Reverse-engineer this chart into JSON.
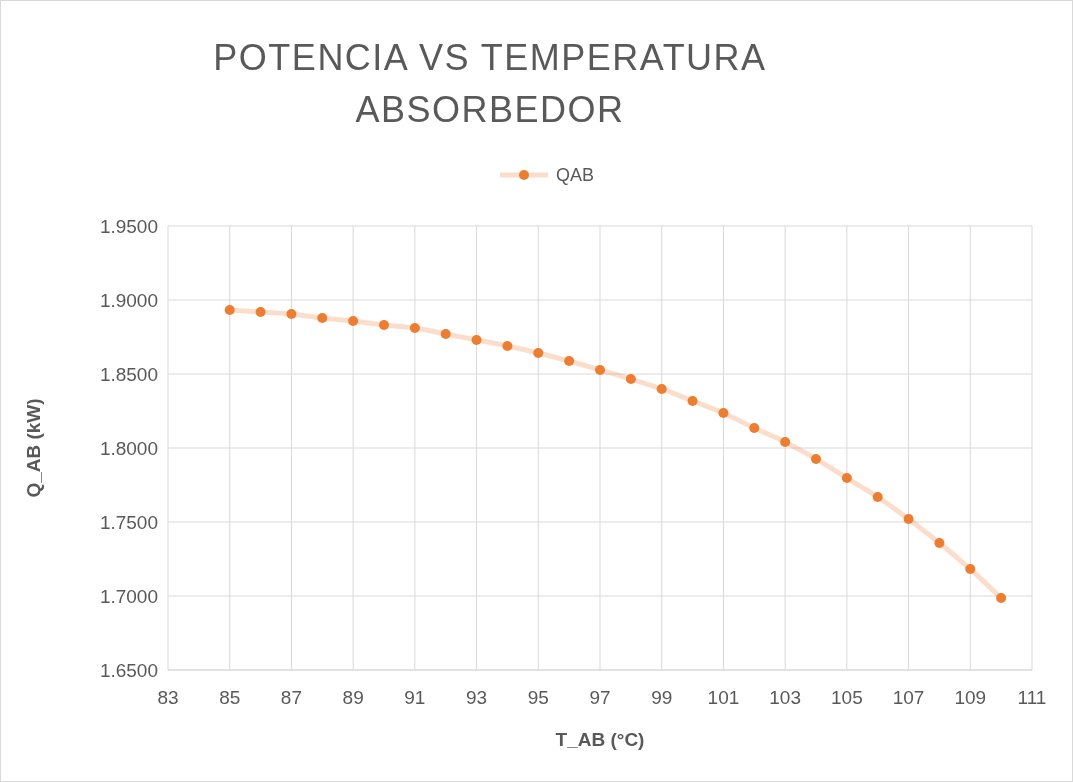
{
  "chart_data": {
    "type": "line",
    "title": "POTENCIA VS TEMPERATURA ABSORBEDOR",
    "xlabel": "T_AB (°C)",
    "ylabel": "Q_AB (kW)",
    "x": [
      85,
      86,
      87,
      88,
      89,
      90,
      91,
      92,
      93,
      94,
      95,
      96,
      97,
      98,
      99,
      100,
      101,
      102,
      103,
      104,
      105,
      106,
      107,
      108,
      109,
      110
    ],
    "series": [
      {
        "name": "QAB",
        "color": "#ed7d31",
        "values": [
          1.8932,
          1.8919,
          1.8905,
          1.8878,
          1.8858,
          1.8831,
          1.8811,
          1.877,
          1.873,
          1.8689,
          1.8642,
          1.8588,
          1.8527,
          1.8466,
          1.8399,
          1.8318,
          1.8236,
          1.8135,
          1.8041,
          1.7926,
          1.7797,
          1.7669,
          1.752,
          1.7358,
          1.7182,
          1.6986
        ]
      }
    ],
    "xlim": [
      83,
      111
    ],
    "xticks": [
      83,
      85,
      87,
      89,
      91,
      93,
      95,
      97,
      99,
      101,
      103,
      105,
      107,
      109,
      111
    ],
    "ylim": [
      1.65,
      1.95
    ],
    "yticks": [
      {
        "value": 1.65,
        "label": "1.6500"
      },
      {
        "value": 1.7,
        "label": "1.7000"
      },
      {
        "value": 1.75,
        "label": "1.7500"
      },
      {
        "value": 1.8,
        "label": "1.8000"
      },
      {
        "value": 1.85,
        "label": "1.8500"
      },
      {
        "value": 1.9,
        "label": "1.9000"
      },
      {
        "value": 1.95,
        "label": "1.9500"
      }
    ],
    "grid": true,
    "legend": "top",
    "marker": "circle",
    "line_style": "solid"
  }
}
